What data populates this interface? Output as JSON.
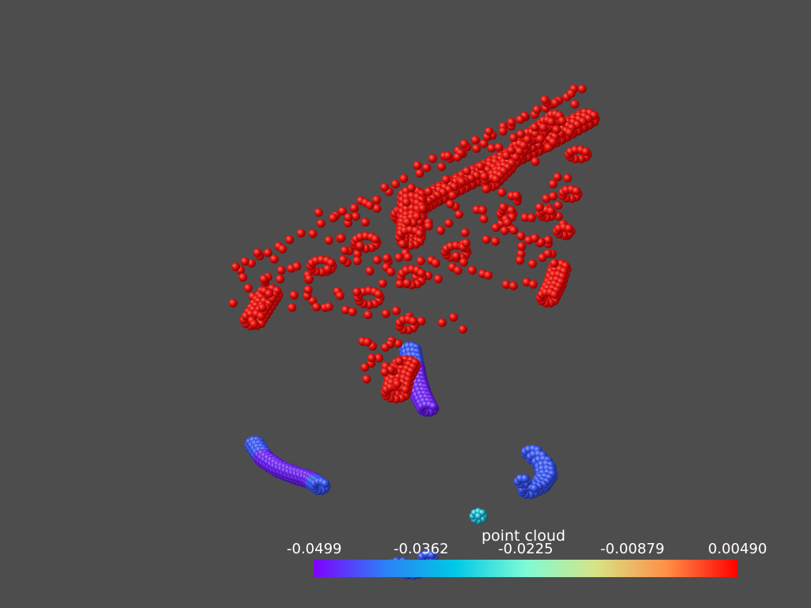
{
  "scene": {
    "background": "#4d4d4d",
    "description_free_note": ""
  },
  "colorbar": {
    "title": "point cloud",
    "ticks": [
      "-0.0499",
      "-0.0362",
      "-0.0225",
      "-0.00879",
      "0.00490"
    ],
    "range": [
      -0.0499,
      0.0049
    ],
    "colormap": "rainbow",
    "stops": [
      "#7f00ff",
      "#2e7ff6",
      "#00c8e6",
      "#7ffad6",
      "#d6e486",
      "#ff8f47",
      "#ff0000"
    ]
  },
  "colors": {
    "high": "#ff0000",
    "mid_low": "#3b5bff",
    "low": "#7a1bff",
    "cyan": "#22c6dc"
  }
}
